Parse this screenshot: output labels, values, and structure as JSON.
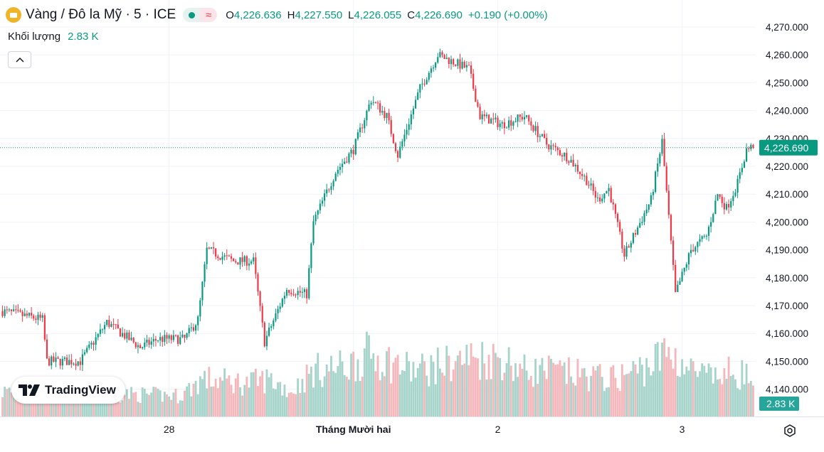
{
  "header": {
    "title": "Vàng / Đô la Mỹ · 5 · ICE",
    "approx_symbol": "≈",
    "open_label": "O",
    "open": "4,226.636",
    "high_label": "H",
    "high": "4,227.550",
    "low_label": "L",
    "low": "4,226.055",
    "close_label": "C",
    "close": "4,226.690",
    "change": "+0.190 (+0.00%)"
  },
  "volume_indicator": {
    "label": "Khối lượng",
    "value": "2.83 K"
  },
  "branding": {
    "name": "TradingView"
  },
  "colors": {
    "up": "#089981",
    "down": "#f23645",
    "up_vol": "#a6d4cb",
    "down_vol": "#f4b7bb",
    "grid": "#f0f3fa",
    "axis_text": "#131722"
  },
  "chart_data": {
    "type": "candlestick",
    "title": "Vàng / Đô la Mỹ · 5 · ICE",
    "ylim": [
      4135,
      4272
    ],
    "y_ticks": [
      4270,
      4260,
      4250,
      4240,
      4230,
      4220,
      4210,
      4200,
      4190,
      4180,
      4170,
      4160,
      4150,
      4140
    ],
    "y_tick_labels": [
      "4,270.000",
      "4,260.000",
      "4,250.000",
      "4,240.000",
      "4,230.000",
      "4,220.000",
      "4,210.000",
      "4,200.000",
      "4,190.000",
      "4,180.000",
      "4,170.000",
      "4,160.000",
      "4,150.000",
      "4,140.000"
    ],
    "x_labels": [
      {
        "label": "28",
        "index": 75,
        "bold": false
      },
      {
        "label": "Tháng Mười hai",
        "index": 158,
        "bold": true
      },
      {
        "label": "2",
        "index": 223,
        "bold": false
      },
      {
        "label": "3",
        "index": 306,
        "bold": false
      }
    ],
    "last_price": 4226.69,
    "last_price_label": "4,226.690",
    "volume_last_label": "2.83 K",
    "price_path": [
      [
        0,
        4168
      ],
      [
        18,
        4165
      ],
      [
        20,
        4150
      ],
      [
        35,
        4150
      ],
      [
        47,
        4164
      ],
      [
        62,
        4155
      ],
      [
        70,
        4158
      ],
      [
        82,
        4158
      ],
      [
        88,
        4165
      ],
      [
        92,
        4190
      ],
      [
        104,
        4186
      ],
      [
        113,
        4186
      ],
      [
        118,
        4157
      ],
      [
        128,
        4176
      ],
      [
        137,
        4174
      ],
      [
        140,
        4200
      ],
      [
        150,
        4218
      ],
      [
        158,
        4226
      ],
      [
        166,
        4244
      ],
      [
        173,
        4238
      ],
      [
        178,
        4224
      ],
      [
        188,
        4248
      ],
      [
        196,
        4260
      ],
      [
        207,
        4256
      ],
      [
        210,
        4255
      ],
      [
        215,
        4238
      ],
      [
        225,
        4235
      ],
      [
        235,
        4238
      ],
      [
        245,
        4228
      ],
      [
        255,
        4223
      ],
      [
        263,
        4215
      ],
      [
        268,
        4208
      ],
      [
        273,
        4212
      ],
      [
        280,
        4188
      ],
      [
        286,
        4198
      ],
      [
        292,
        4208
      ],
      [
        297,
        4229
      ],
      [
        303,
        4174
      ],
      [
        310,
        4190
      ],
      [
        317,
        4195
      ],
      [
        322,
        4210
      ],
      [
        326,
        4205
      ],
      [
        331,
        4214
      ],
      [
        335,
        4226
      ],
      [
        338,
        4227
      ]
    ],
    "volume_profile": [
      [
        0,
        0.3
      ],
      [
        40,
        0.28
      ],
      [
        80,
        0.25
      ],
      [
        90,
        0.45
      ],
      [
        110,
        0.4
      ],
      [
        120,
        0.45
      ],
      [
        130,
        0.3
      ],
      [
        140,
        0.55
      ],
      [
        155,
        0.6
      ],
      [
        165,
        0.75
      ],
      [
        175,
        0.65
      ],
      [
        185,
        0.55
      ],
      [
        195,
        0.6
      ],
      [
        210,
        0.7
      ],
      [
        225,
        0.7
      ],
      [
        235,
        0.55
      ],
      [
        245,
        0.55
      ],
      [
        260,
        0.5
      ],
      [
        275,
        0.45
      ],
      [
        290,
        0.6
      ],
      [
        300,
        0.78
      ],
      [
        310,
        0.55
      ],
      [
        320,
        0.45
      ],
      [
        330,
        0.55
      ],
      [
        338,
        0.45
      ]
    ]
  }
}
